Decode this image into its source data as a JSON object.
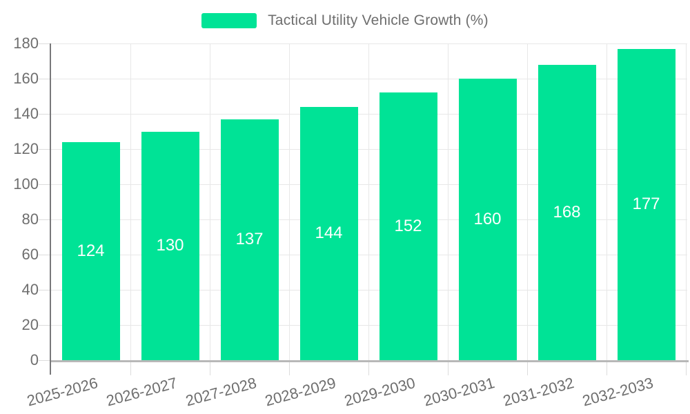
{
  "legend": {
    "label": "Tactical Utility Vehicle Growth (%)"
  },
  "colors": {
    "bar": "#00E396",
    "data_label": "#ffffff",
    "axis_text": "#6e6e6e",
    "grid": "#e7e7e7",
    "tick": "#dcdcdc",
    "y_axis_line": "#78787a",
    "x_axis_line": "#b8b8b8",
    "background": "#ffffff"
  },
  "chart_data": {
    "type": "bar",
    "title": "Tactical Utility Vehicle Growth (%)",
    "categories": [
      "2025-2026",
      "2026-2027",
      "2027-2028",
      "2028-2029",
      "2029-2030",
      "2030-2031",
      "2031-2032",
      "2032-2033"
    ],
    "values": [
      124,
      130,
      137,
      144,
      152,
      160,
      168,
      177
    ],
    "data_labels": [
      "124",
      "130",
      "137",
      "144",
      "152",
      "160",
      "168",
      "177"
    ],
    "ytick_labels": [
      "0",
      "20",
      "40",
      "60",
      "80",
      "100",
      "120",
      "140",
      "160",
      "180"
    ],
    "xlabel": "",
    "ylabel": "",
    "ylim": [
      0,
      180
    ],
    "ytick_step": 20,
    "grid": "on",
    "legend_position": "top",
    "xlabel_rotation_deg": -15
  }
}
